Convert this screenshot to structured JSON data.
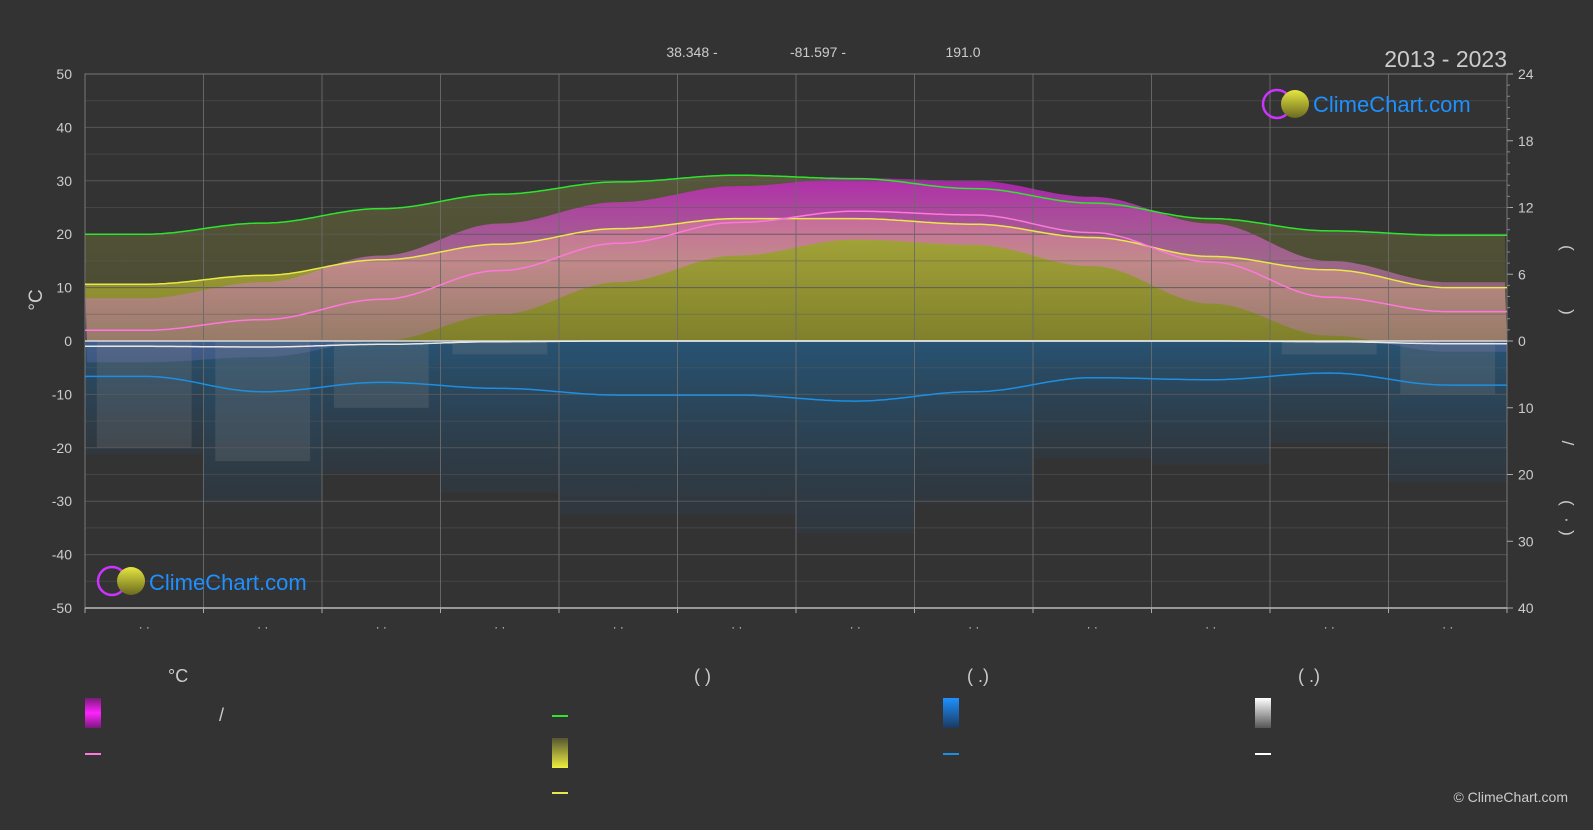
{
  "header": {
    "period": "2013 - 2023",
    "latitude": "38.348 -",
    "longitude": "-81.597 -",
    "elevation": "191.0"
  },
  "brand": {
    "logo_text": "ClimeChart.com",
    "copyright": "© ClimeChart.com",
    "text_color": "#1e90ff"
  },
  "axes": {
    "left_unit": "°C",
    "right_upper_marks": [
      "(",
      ")"
    ],
    "right_lower_marks": [
      "/",
      "(",
      "·",
      ")"
    ],
    "x_tick_marks": [
      "· ·",
      "· ·",
      "· ·",
      "· ·",
      "· ·",
      "· ·",
      "· ·",
      "· ·",
      "· ·",
      "· ·",
      "· ·",
      "· ·"
    ]
  },
  "legend": {
    "col1_header": "°C",
    "col1_mid": "/",
    "col2_header": "(          )",
    "col3_header": "(    .)",
    "col4_header": "(    .)"
  },
  "colors": {
    "background": "#333333",
    "grid": "#5a5a5a",
    "daylight": "#2ee52e",
    "sunshine": "#e8e84a",
    "temp_mean": "#ff77dd",
    "temp_band": "#d01fd0",
    "rain": "#1e8fe0",
    "snow": "#e6e6e6"
  },
  "chart_data": {
    "type": "area",
    "x_categories": [
      "· ·",
      "· ·",
      "· ·",
      "· ·",
      "· ·",
      "· ·",
      "· ·",
      "· ·",
      "· ·",
      "· ·",
      "· ·",
      "· ·"
    ],
    "left_axis": {
      "unit": "°C",
      "ylim": [
        -50,
        50
      ],
      "ticks": [
        50,
        40,
        30,
        20,
        10,
        0,
        -10,
        -20,
        -30,
        -40,
        -50
      ]
    },
    "right_axis_upper": {
      "ylim": [
        0,
        24
      ],
      "ticks": [
        24,
        18,
        12,
        6,
        0
      ]
    },
    "right_axis_lower": {
      "ylim": [
        0,
        40
      ],
      "ticks": [
        10,
        20,
        30,
        40
      ]
    },
    "grid": true,
    "series": [
      {
        "key": "daylight",
        "axis": "right_upper",
        "values": [
          9.6,
          10.6,
          11.9,
          13.2,
          14.3,
          14.9,
          14.6,
          13.7,
          12.4,
          11.0,
          9.9,
          9.5
        ]
      },
      {
        "key": "sunshine",
        "axis": "right_upper",
        "values": [
          5.1,
          5.9,
          7.3,
          8.7,
          10.1,
          11.0,
          11.0,
          10.5,
          9.3,
          7.6,
          6.4,
          4.8
        ]
      },
      {
        "key": "temp_mean",
        "axis": "left",
        "values": [
          2.0,
          4.0,
          7.8,
          13.2,
          18.3,
          22.2,
          24.3,
          23.6,
          20.3,
          14.8,
          8.2,
          5.5
        ]
      },
      {
        "key": "temp_max",
        "axis": "left",
        "values": [
          8,
          11,
          16,
          22,
          26,
          29,
          30.5,
          30,
          27,
          22,
          15,
          11
        ]
      },
      {
        "key": "temp_min",
        "axis": "left",
        "values": [
          -4,
          -3,
          0,
          5,
          11,
          16,
          19,
          18,
          14,
          7,
          1,
          -2
        ]
      },
      {
        "key": "rain",
        "axis": "right_lower",
        "values": [
          5.3,
          7.6,
          6.2,
          7.1,
          8.1,
          8.1,
          9.0,
          7.6,
          5.5,
          5.8,
          4.8,
          6.6
        ]
      },
      {
        "key": "snow",
        "axis": "right_lower",
        "values": [
          0.8,
          0.9,
          0.5,
          0.1,
          0,
          0,
          0,
          0,
          0,
          0,
          0.1,
          0.4
        ]
      }
    ]
  }
}
